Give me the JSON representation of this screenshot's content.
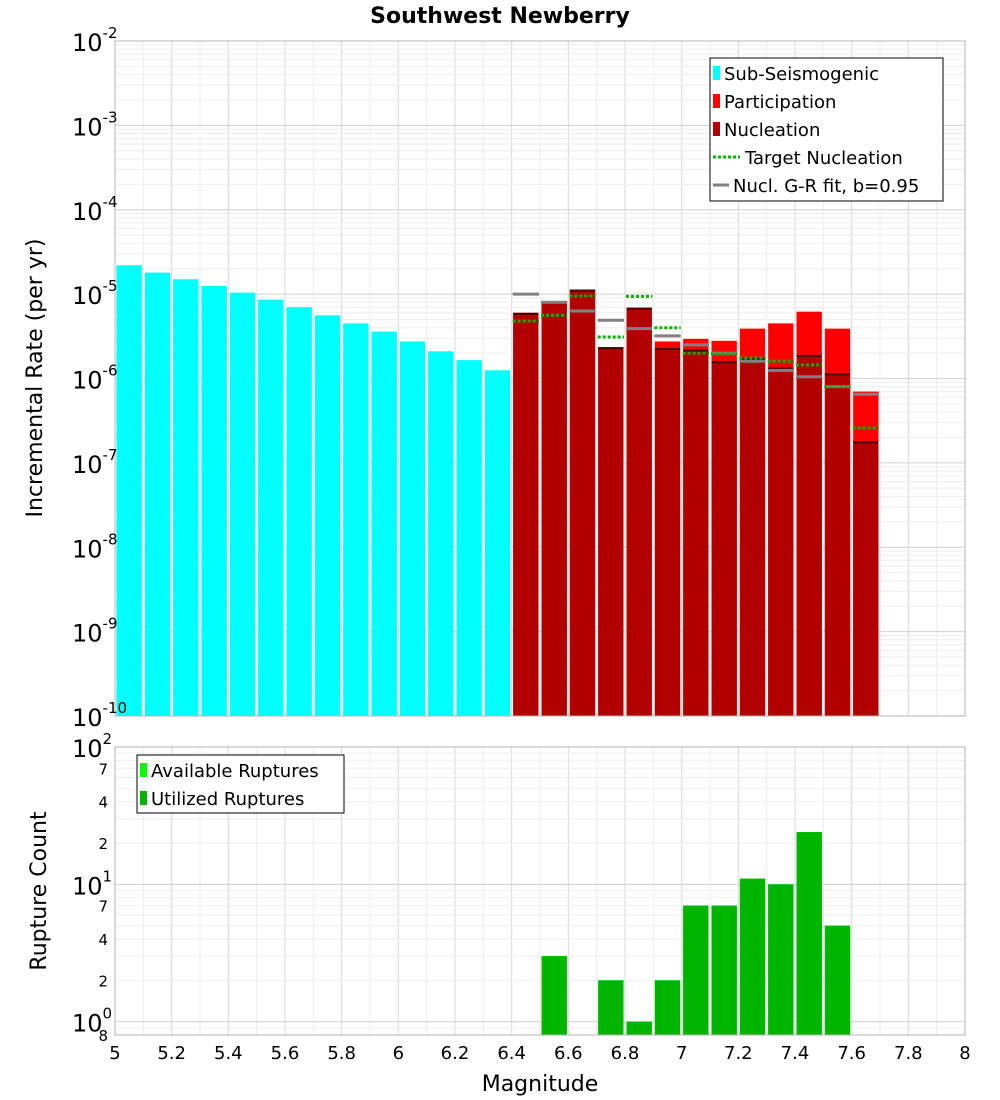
{
  "chart_data": [
    {
      "type": "bar",
      "title": "Southwest Newberry",
      "xlabel": "",
      "ylabel": "Incremental Rate (per yr)",
      "yscale": "log",
      "xlim": [
        5,
        8
      ],
      "ylim": [
        1e-10,
        0.01
      ],
      "decade_ticks": [
        {
          "base": "10",
          "exp": "-2"
        },
        {
          "base": "10",
          "exp": "-3"
        },
        {
          "base": "10",
          "exp": "-4"
        },
        {
          "base": "10",
          "exp": "-5"
        },
        {
          "base": "10",
          "exp": "-6"
        },
        {
          "base": "10",
          "exp": "-7"
        },
        {
          "base": "10",
          "exp": "-8"
        },
        {
          "base": "10",
          "exp": "-9"
        },
        {
          "base": "10",
          "exp": "-10"
        }
      ],
      "legend": [
        {
          "label": "Sub-Seismogenic",
          "color": "#00ffff",
          "style": "bar"
        },
        {
          "label": "Participation",
          "color": "#ff0000",
          "style": "bar"
        },
        {
          "label": "Nucleation",
          "color": "#b20000",
          "style": "bar"
        },
        {
          "label": "Target Nucleation",
          "color": "#00b400",
          "style": "dotted"
        },
        {
          "label": "Nucl. G-R fit, b=0.95",
          "color": "#808080",
          "style": "line"
        }
      ],
      "legend_position": "top-right",
      "series": [
        {
          "name": "Sub-Seismogenic",
          "color": "#00ffff",
          "x": [
            5.05,
            5.15,
            5.25,
            5.35,
            5.45,
            5.55,
            5.65,
            5.75,
            5.85,
            5.95,
            6.05,
            6.15,
            6.25,
            6.35
          ],
          "values": [
            2.2e-05,
            1.8e-05,
            1.5e-05,
            1.25e-05,
            1.04e-05,
            8.6e-06,
            7e-06,
            5.6e-06,
            4.5e-06,
            3.6e-06,
            2.75e-06,
            2.1e-06,
            1.65e-06,
            1.25e-06
          ]
        },
        {
          "name": "Participation",
          "color": "#ff0000",
          "x": [
            6.45,
            6.55,
            6.65,
            6.75,
            6.85,
            6.95,
            7.05,
            7.15,
            7.25,
            7.35,
            7.45,
            7.55,
            7.65
          ],
          "values": [
            6e-06,
            8.2e-06,
            1.13e-05,
            2.35e-06,
            6.9e-06,
            2.75e-06,
            2.95e-06,
            2.8e-06,
            3.9e-06,
            4.5e-06,
            6.2e-06,
            3.9e-06,
            7e-07
          ]
        },
        {
          "name": "Nucleation",
          "color": "#b20000",
          "x": [
            6.45,
            6.55,
            6.65,
            6.75,
            6.85,
            6.95,
            7.05,
            7.15,
            7.25,
            7.35,
            7.45,
            7.55,
            7.65
          ],
          "values": [
            6e-06,
            8.2e-06,
            1.13e-05,
            2.35e-06,
            6.9e-06,
            2.3e-06,
            2.2e-06,
            1.6e-06,
            1.75e-06,
            1.35e-06,
            1.9e-06,
            1.15e-06,
            1.8e-07
          ]
        },
        {
          "name": "Target Nucleation",
          "color": "#00b400",
          "x": [
            6.45,
            6.55,
            6.65,
            6.75,
            6.85,
            6.95,
            7.05,
            7.15,
            7.25,
            7.35,
            7.45,
            7.55,
            7.65
          ],
          "values": [
            4.8e-06,
            5.6e-06,
            9.5e-06,
            3.1e-06,
            9.4e-06,
            4e-06,
            2e-06,
            1.95e-06,
            1.75e-06,
            1.6e-06,
            1.45e-06,
            8e-07,
            2.6e-07
          ]
        },
        {
          "name": "Nucl. G-R fit, b=0.95",
          "color": "#808080",
          "x": [
            6.45,
            6.55,
            6.65,
            6.75,
            6.85,
            6.95,
            7.05,
            7.15,
            7.25,
            7.35,
            7.45,
            7.55,
            7.65
          ],
          "values": [
            1e-05,
            8e-06,
            6.3e-06,
            4.9e-06,
            3.9e-06,
            3.2e-06,
            2.5e-06,
            2e-06,
            1.6e-06,
            1.25e-06,
            1.05e-06,
            8e-07,
            6.5e-07
          ]
        }
      ]
    },
    {
      "type": "bar",
      "title": "",
      "xlabel": "Magnitude",
      "ylabel": "Rupture Count",
      "yscale": "log",
      "xlim": [
        5,
        8
      ],
      "ylim": [
        0.8,
        100
      ],
      "x_tick_labels": [
        "5",
        "5.2",
        "5.4",
        "5.6",
        "5.8",
        "6",
        "6.2",
        "6.4",
        "6.6",
        "6.8",
        "7",
        "7.2",
        "7.4",
        "7.6",
        "7.8",
        "8"
      ],
      "y_decade_ticks": [
        {
          "base": "10",
          "exp": "2"
        },
        {
          "base": "10",
          "exp": "1"
        },
        {
          "base": "10",
          "exp": "0"
        }
      ],
      "y_minor_tick_labels": [
        {
          "label": "7",
          "value": 70
        },
        {
          "label": "4",
          "value": 40
        },
        {
          "label": "2",
          "value": 20
        },
        {
          "label": "7",
          "value": 7
        },
        {
          "label": "4",
          "value": 4
        },
        {
          "label": "2",
          "value": 2
        },
        {
          "label": "8",
          "value": 0.8
        }
      ],
      "legend": [
        {
          "label": "Available Ruptures",
          "color": "#00ff00",
          "style": "bar"
        },
        {
          "label": "Utilized Ruptures",
          "color": "#00b400",
          "style": "bar"
        }
      ],
      "legend_position": "top-left",
      "series": [
        {
          "name": "Available Ruptures",
          "color": "#00ff00",
          "x": [
            6.55,
            6.75,
            6.85,
            6.95,
            7.05,
            7.15,
            7.25,
            7.35,
            7.45,
            7.55
          ],
          "values": [
            3,
            2,
            1,
            2,
            7,
            7,
            11,
            10,
            24,
            5
          ]
        },
        {
          "name": "Utilized Ruptures",
          "color": "#00b400",
          "x": [
            6.55,
            6.75,
            6.85,
            6.95,
            7.05,
            7.15,
            7.25,
            7.35,
            7.45,
            7.55
          ],
          "values": [
            3,
            2,
            1,
            2,
            7,
            7,
            11,
            10,
            24,
            5
          ]
        }
      ]
    }
  ]
}
